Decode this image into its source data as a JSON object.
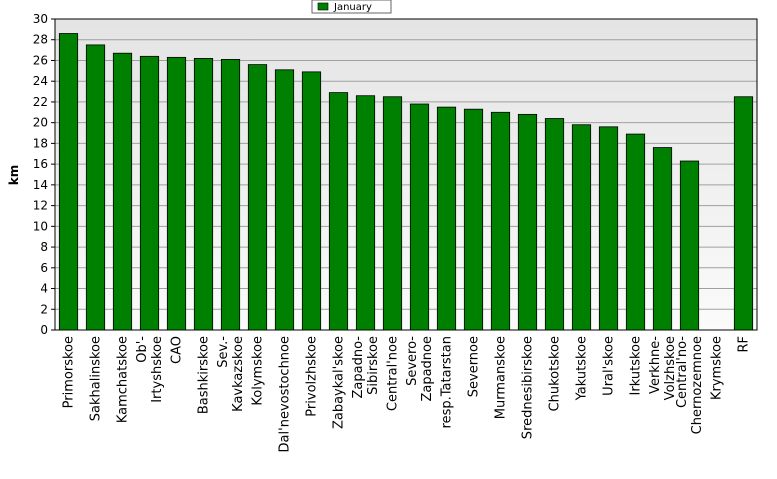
{
  "chart_data": {
    "type": "bar",
    "y_label": "km",
    "legend_position": "top",
    "series": [
      {
        "name": "January",
        "color": "#008000",
        "values": [
          28.6,
          27.5,
          26.7,
          26.4,
          26.3,
          26.2,
          26.1,
          25.6,
          25.1,
          24.9,
          22.9,
          22.6,
          22.5,
          21.8,
          21.5,
          21.3,
          21.0,
          20.8,
          20.4,
          19.8,
          19.6,
          18.9,
          17.6,
          16.3,
          null,
          22.5
        ]
      }
    ],
    "categories": [
      "Primorskoe",
      "Sakhalinskoe",
      "Kamchatskoe",
      "Ob'-\nIrtyshskoe",
      "CAO",
      "Bashkirskoe",
      "Sev.-\nKavkazskoe",
      "Kolymskoe",
      "Dal'nevostochnoe",
      "Privolzhskoe",
      "Zabaykal'skoe",
      "Zapadno-\nSibirskoe",
      "Central'noe",
      "Severo-\nZapadnoe",
      "resp.Tatarstan",
      "Severnoe",
      "Murmanskoe",
      "Srednesibirskoe",
      "Chukotskoe",
      "Yakutskoe",
      "Ural'skoe",
      "Irkutskoe",
      "Verkhne-\nVolzhskoe",
      "Central'no-\nChernozemnoe",
      "Krymskoe",
      "RF"
    ],
    "ylim": [
      0,
      30
    ],
    "yticks": [
      0,
      2,
      4,
      6,
      8,
      10,
      12,
      14,
      16,
      18,
      20,
      22,
      24,
      26,
      28,
      30
    ],
    "grid": true
  }
}
